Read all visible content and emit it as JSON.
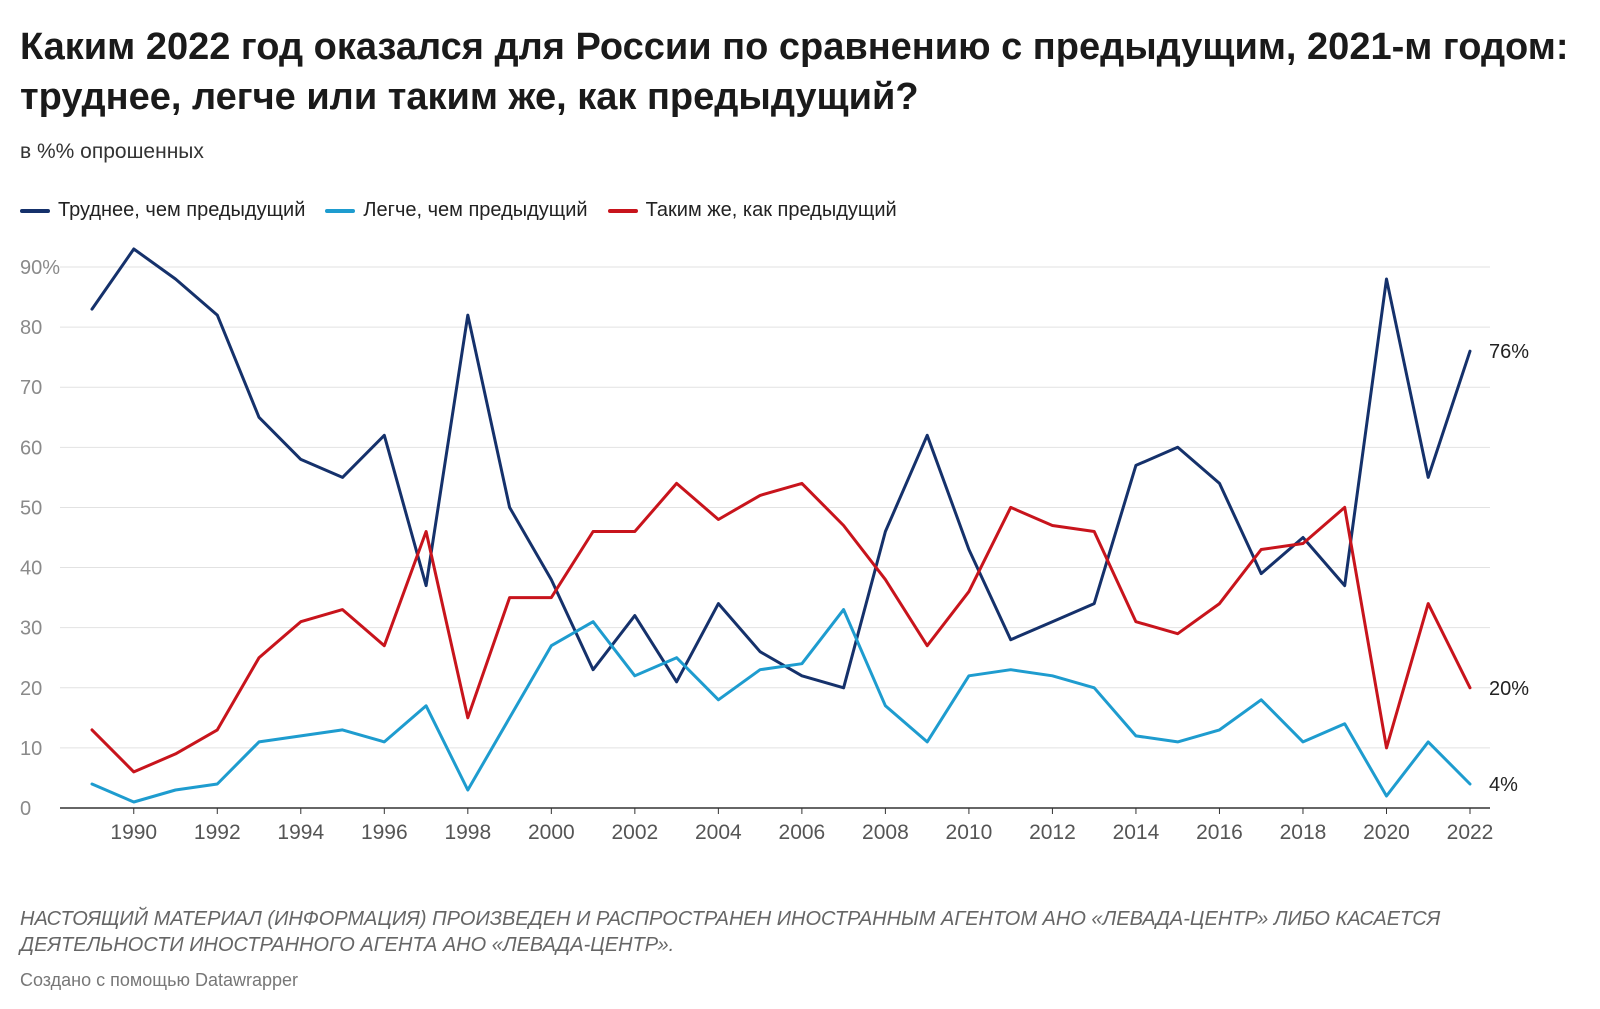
{
  "header": {
    "title": "Каким 2022 год оказался для России по сравнению с предыдущим, 2021-м годом: труднее, легче или таким же, как предыдущий?",
    "subtitle": "в %% опрошенных"
  },
  "footer": {
    "note": "НАСТОЯЩИЙ МАТЕРИАЛ (ИНФОРМАЦИЯ) ПРОИЗВЕДЕН И РАСПРОСТРАНЕН ИНОСТРАННЫМ АГЕНТОМ АНО «ЛЕВАДА-ЦЕНТР» ЛИБО КАСАЕТСЯ ДЕЯТЕЛЬНОСТИ ИНОСТРАННОГО АГЕНТА АНО «ЛЕВАДА-ЦЕНТР».",
    "credit": "Создано с помощью Datawrapper"
  },
  "chart_data": {
    "type": "line",
    "title": "Каким 2022 год оказался для России по сравнению с предыдущим, 2021-м годом: труднее, легче или таким же, как предыдущий?",
    "subtitle": "в %% опрошенных",
    "xlabel": "",
    "ylabel": "",
    "x": [
      1989,
      1990,
      1991,
      1992,
      1993,
      1994,
      1995,
      1996,
      1997,
      1998,
      1999,
      2000,
      2001,
      2002,
      2003,
      2004,
      2005,
      2006,
      2007,
      2008,
      2009,
      2010,
      2011,
      2012,
      2013,
      2014,
      2015,
      2016,
      2017,
      2018,
      2019,
      2020,
      2021,
      2022
    ],
    "xlim": [
      1989,
      2022
    ],
    "ylim": [
      0,
      90
    ],
    "xticks": [
      "1990",
      "1992",
      "1994",
      "1996",
      "1998",
      "2000",
      "2002",
      "2004",
      "2006",
      "2008",
      "2010",
      "2012",
      "2014",
      "2016",
      "2018",
      "2020",
      "2022"
    ],
    "xtick_values": [
      1990,
      1992,
      1994,
      1996,
      1998,
      2000,
      2002,
      2004,
      2006,
      2008,
      2010,
      2012,
      2014,
      2016,
      2018,
      2020,
      2022
    ],
    "yticks": [
      "0",
      "10",
      "20",
      "30",
      "40",
      "50",
      "60",
      "70",
      "80",
      "90%"
    ],
    "ytick_values": [
      0,
      10,
      20,
      30,
      40,
      50,
      60,
      70,
      80,
      90
    ],
    "grid": true,
    "legend_position": "top-left",
    "series": [
      {
        "name": "Труднее, чем предыдущий",
        "color": "#15316b",
        "end_label": "76%",
        "values": [
          83,
          93,
          88,
          82,
          65,
          58,
          55,
          62,
          37,
          82,
          50,
          38,
          23,
          32,
          21,
          34,
          26,
          22,
          20,
          46,
          62,
          43,
          28,
          31,
          34,
          57,
          60,
          54,
          39,
          45,
          37,
          88,
          55,
          76
        ]
      },
      {
        "name": "Легче, чем предыдущий",
        "color": "#1e9ccf",
        "end_label": "4%",
        "values": [
          4,
          1,
          3,
          4,
          11,
          12,
          13,
          11,
          17,
          3,
          15,
          27,
          31,
          22,
          25,
          18,
          23,
          24,
          33,
          17,
          11,
          22,
          23,
          22,
          20,
          12,
          11,
          13,
          18,
          11,
          14,
          2,
          11,
          4
        ]
      },
      {
        "name": "Таким  же, как предыдущий",
        "color": "#c8141c",
        "end_label": "20%",
        "values": [
          13,
          6,
          9,
          13,
          25,
          31,
          33,
          27,
          46,
          15,
          35,
          35,
          46,
          46,
          54,
          48,
          52,
          54,
          47,
          38,
          27,
          36,
          50,
          47,
          46,
          31,
          29,
          34,
          43,
          44,
          50,
          10,
          34,
          20
        ]
      }
    ]
  }
}
